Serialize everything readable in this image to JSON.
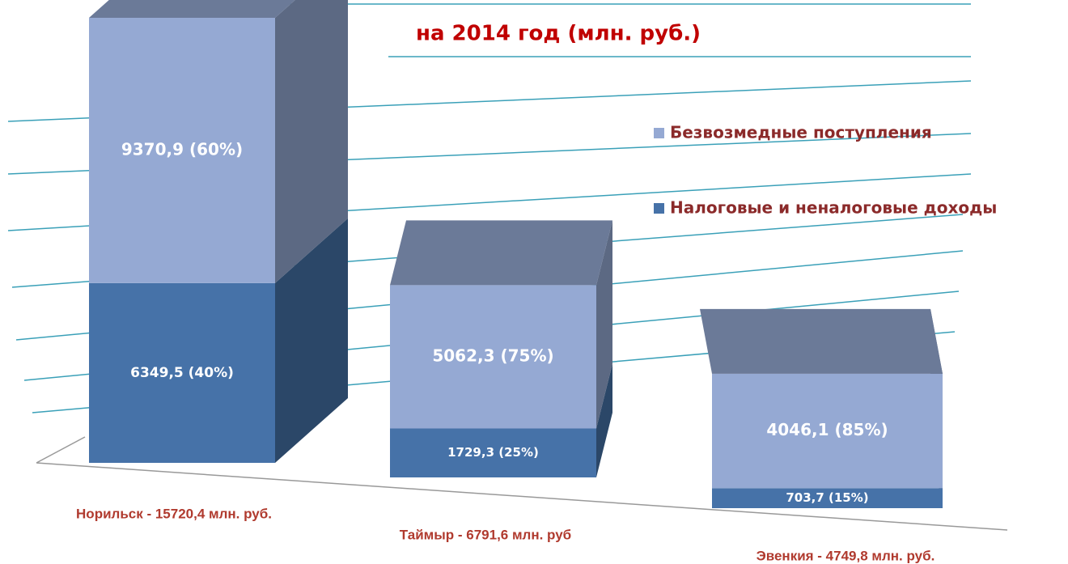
{
  "chart_data": {
    "type": "bar3d_stacked",
    "title": "на 2014 год (млн. руб.)",
    "categories": [
      "Норильск - 15720,4 млн. руб.",
      "Таймыр - 6791,6 млн. руб",
      "Эвенкия - 4749,8 млн. руб."
    ],
    "series": [
      {
        "name": "Налоговые и неналоговые доходы",
        "color": "#4672a8",
        "values": [
          6349.5,
          1729.3,
          703.7
        ],
        "value_labels": [
          "6349,5 (40%)",
          "1729,3 (25%)",
          "703,7 (15%)"
        ]
      },
      {
        "name": "Безвозмедные поступления",
        "color": "#95a9d3",
        "values": [
          9370.9,
          5062.3,
          4046.1
        ],
        "value_labels": [
          "9370,9 (60%)",
          "5062,3 (75%)",
          "4046,1 (85%)"
        ]
      }
    ]
  }
}
